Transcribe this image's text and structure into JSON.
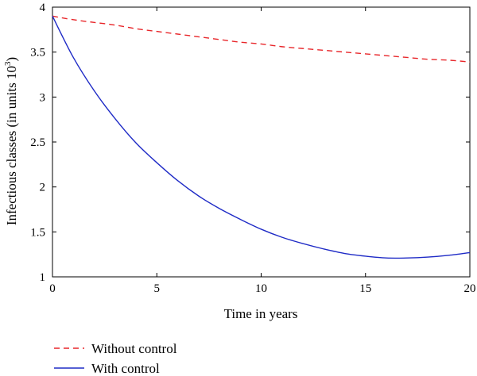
{
  "chart_data": {
    "type": "line",
    "title": "",
    "xlabel": "Time in years",
    "ylabel": "Infectious classes (in units 10",
    "ylabel_sup": "3",
    "ylabel_end": ")",
    "xlim": [
      0,
      20
    ],
    "ylim": [
      1,
      4
    ],
    "xticks": [
      0,
      5,
      10,
      15,
      20
    ],
    "xtick_labels": [
      "0",
      "5",
      "10",
      "15",
      "20"
    ],
    "yticks": [
      1,
      1.5,
      2,
      2.5,
      3,
      3.5,
      4
    ],
    "ytick_labels": [
      "1",
      "1.5",
      "2",
      "2.5",
      "3",
      "3.5",
      "4"
    ],
    "grid": false,
    "legend_position": "bottom-left, below plot",
    "x": [
      0,
      1,
      2,
      3,
      4,
      5,
      6,
      7,
      8,
      9,
      10,
      11,
      12,
      13,
      14,
      15,
      16,
      17,
      18,
      19,
      20
    ],
    "series": [
      {
        "name": "Without control",
        "color": "#e8262a",
        "style": "dashed",
        "values": [
          3.9,
          3.86,
          3.83,
          3.8,
          3.76,
          3.73,
          3.7,
          3.67,
          3.64,
          3.61,
          3.59,
          3.56,
          3.54,
          3.52,
          3.5,
          3.48,
          3.46,
          3.44,
          3.42,
          3.41,
          3.39
        ]
      },
      {
        "name": "With control",
        "color": "#1f2bc6",
        "style": "solid",
        "values": [
          3.9,
          3.44,
          3.07,
          2.76,
          2.49,
          2.27,
          2.07,
          1.9,
          1.76,
          1.64,
          1.53,
          1.44,
          1.37,
          1.31,
          1.26,
          1.23,
          1.21,
          1.21,
          1.22,
          1.24,
          1.27
        ]
      }
    ]
  }
}
